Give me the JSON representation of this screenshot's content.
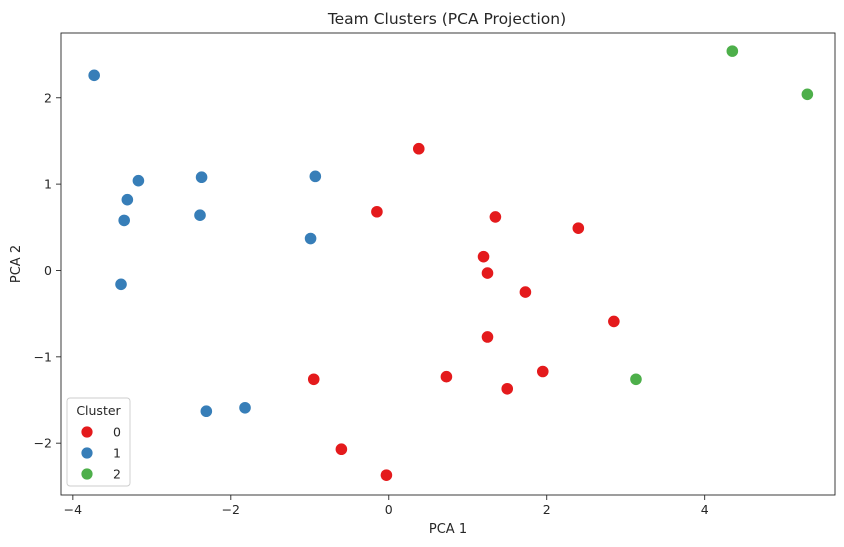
{
  "chart_data": {
    "type": "scatter",
    "title": "Team Clusters (PCA Projection)",
    "xlabel": "PCA 1",
    "ylabel": "PCA 2",
    "xlim": [
      -4.15,
      5.65
    ],
    "ylim": [
      -2.6,
      2.75
    ],
    "xticks": [
      -4,
      -2,
      0,
      2,
      4
    ],
    "yticks": [
      -2,
      -1,
      0,
      1,
      2
    ],
    "grid": false,
    "legend": {
      "title": "Cluster",
      "placement": "lower-left"
    },
    "series": [
      {
        "name": "0",
        "color": "#e41a1c",
        "points": [
          [
            0.38,
            1.41
          ],
          [
            -0.15,
            0.68
          ],
          [
            1.35,
            0.62
          ],
          [
            2.4,
            0.49
          ],
          [
            1.2,
            0.16
          ],
          [
            1.25,
            -0.03
          ],
          [
            1.73,
            -0.25
          ],
          [
            2.85,
            -0.59
          ],
          [
            1.25,
            -0.77
          ],
          [
            0.73,
            -1.23
          ],
          [
            1.95,
            -1.17
          ],
          [
            1.5,
            -1.37
          ],
          [
            -0.95,
            -1.26
          ],
          [
            -0.6,
            -2.07
          ],
          [
            -0.03,
            -2.37
          ]
        ]
      },
      {
        "name": "1",
        "color": "#377eb8",
        "points": [
          [
            -3.73,
            2.26
          ],
          [
            -3.17,
            1.04
          ],
          [
            -3.31,
            0.82
          ],
          [
            -3.35,
            0.58
          ],
          [
            -2.37,
            1.08
          ],
          [
            -2.39,
            0.64
          ],
          [
            -0.93,
            1.09
          ],
          [
            -0.99,
            0.37
          ],
          [
            -3.39,
            -0.16
          ],
          [
            -2.31,
            -1.63
          ],
          [
            -1.82,
            -1.59
          ]
        ]
      },
      {
        "name": "2",
        "color": "#4daf4a",
        "points": [
          [
            4.35,
            2.54
          ],
          [
            5.3,
            2.04
          ],
          [
            3.13,
            -1.26
          ]
        ]
      }
    ]
  }
}
